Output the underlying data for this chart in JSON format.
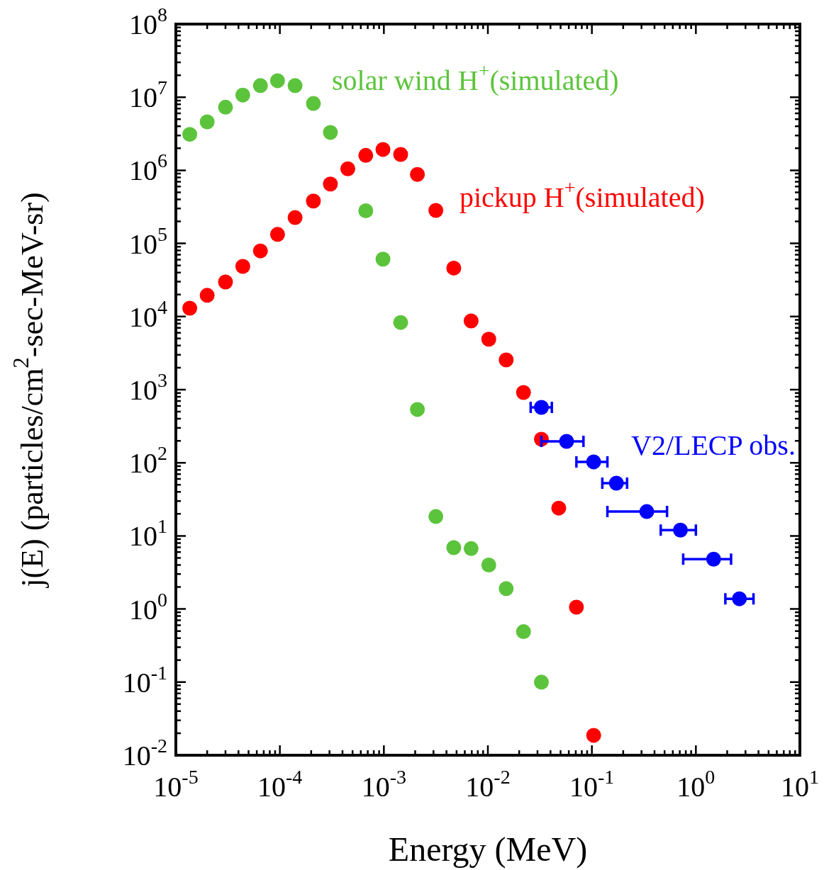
{
  "chart_data": {
    "type": "scatter",
    "xlabel": "Energy (MeV)",
    "ylabel": "j(E) (particles/cm$^{2}$-sec-MeV-sr)",
    "log": "xy",
    "marker": "circle",
    "xlim": [
      1e-05,
      10
    ],
    "ylim": [
      0.01,
      100000000.0
    ],
    "xticks": [
      {
        "value": 1e-05,
        "label": "10$^{-5}$"
      },
      {
        "value": 0.0001,
        "label": "10$^{-4}$"
      },
      {
        "value": 0.001,
        "label": "10$^{-3}$"
      },
      {
        "value": 0.01,
        "label": "10$^{-2}$"
      },
      {
        "value": 0.1,
        "label": "10$^{-1}$"
      },
      {
        "value": 1,
        "label": "10$^{0}$"
      },
      {
        "value": 10,
        "label": "10$^{1}$"
      }
    ],
    "yticks": [
      {
        "value": 0.01,
        "label": "10$^{-2}$"
      },
      {
        "value": 0.1,
        "label": "10$^{-1}$"
      },
      {
        "value": 1,
        "label": "10$^{0}$"
      },
      {
        "value": 10,
        "label": "10$^{1}$"
      },
      {
        "value": 100,
        "label": "10$^{2}$"
      },
      {
        "value": 1000,
        "label": "10$^{3}$"
      },
      {
        "value": 10000,
        "label": "10$^{4}$"
      },
      {
        "value": 100000,
        "label": "10$^{5}$"
      },
      {
        "value": 1000000,
        "label": "10$^{6}$"
      },
      {
        "value": 10000000,
        "label": "10$^{7}$"
      },
      {
        "value": 100000000,
        "label": "10$^{8}$"
      }
    ],
    "series": [
      {
        "name": "solar wind H$^{+}$(simulated)",
        "color": "#5cc43c",
        "x": [
          1.36e-05,
          2e-05,
          3e-05,
          4.4e-05,
          6.5e-05,
          9.5e-05,
          0.00014,
          0.00021,
          0.000306,
          0.00045,
          0.00067,
          0.00098,
          0.00145,
          0.0021,
          0.00316,
          0.0047,
          0.0069,
          0.0102,
          0.015,
          0.022,
          0.0327
        ],
        "values": [
          3100000.0,
          4600000.0,
          7300000.0,
          10700000.0,
          14400000.0,
          16800000.0,
          14400000.0,
          8200000.0,
          3300000.0,
          null,
          280000.0,
          61000.0,
          8300.0,
          536,
          18.4,
          6.9,
          6.7,
          4.0,
          1.9,
          0.49,
          0.1
        ]
      },
      {
        "name": "pickup H$^{+}$(simulated)",
        "color": "#ff0000",
        "x": [
          1.36e-05,
          2e-05,
          3e-05,
          4.4e-05,
          6.5e-05,
          9.5e-05,
          0.00014,
          0.00021,
          0.000306,
          0.00045,
          0.00067,
          0.00098,
          0.00145,
          0.0021,
          0.00316,
          0.0047,
          0.0069,
          0.0102,
          0.015,
          0.022,
          0.0327,
          0.048,
          0.071,
          0.104
        ],
        "values": [
          13000.0,
          19500.0,
          29700.0,
          48500.0,
          79000.0,
          133000.0,
          226000.0,
          380000.0,
          650000.0,
          1050000.0,
          1600000.0,
          1930000.0,
          1650000.0,
          880000.0,
          283000.0,
          46000.0,
          8700.0,
          4900.0,
          2550.0,
          915,
          210,
          24,
          1.06,
          0.0187
        ]
      },
      {
        "name": "V2/LECP obs.",
        "color": "#0000ff",
        "x": [
          0.0327,
          0.0571,
          0.104,
          0.172,
          0.337,
          0.71,
          1.48,
          2.62
        ],
        "values": [
          573,
          196,
          103,
          52.6,
          21.5,
          12,
          4.8,
          1.38
        ],
        "xerrors": [
          [
            0.0258,
            0.0412
          ],
          [
            0.0327,
            0.083
          ],
          [
            0.071,
            0.141
          ],
          [
            0.126,
            0.218
          ],
          [
            0.141,
            0.528
          ],
          [
            0.459,
            1.0
          ],
          [
            0.755,
            2.18
          ],
          [
            1.92,
            3.58
          ]
        ]
      }
    ]
  }
}
